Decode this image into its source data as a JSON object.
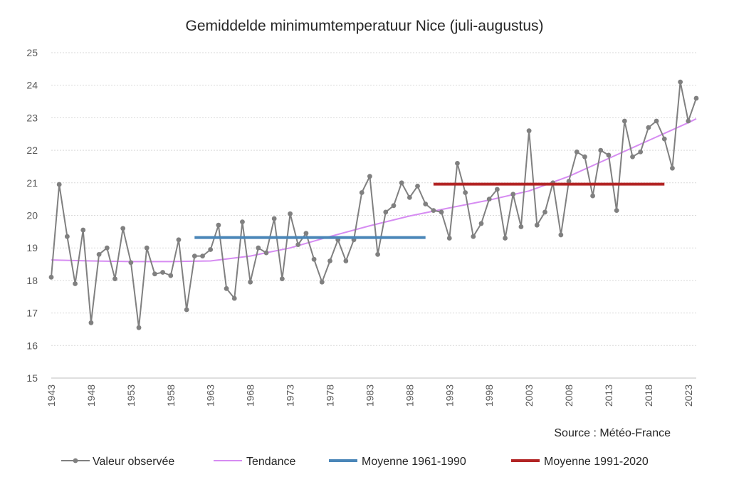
{
  "chart_data": {
    "type": "line",
    "title": "Gemiddelde minimumtemperatuur Nice (juli-augustus)",
    "source": "Source : Météo-France",
    "ylim": [
      15,
      25
    ],
    "yticks": [
      15,
      16,
      17,
      18,
      19,
      20,
      21,
      22,
      23,
      24,
      25
    ],
    "xlim": [
      1943,
      2024
    ],
    "xticks": [
      1943,
      1948,
      1953,
      1958,
      1963,
      1968,
      1973,
      1978,
      1983,
      1988,
      1993,
      1998,
      2003,
      2008,
      2013,
      2018,
      2023
    ],
    "grid": true,
    "legend_position": "bottom",
    "colors": {
      "observed": "#808080",
      "trend": "#d68cf2",
      "mean_1961_1990": "#4a86b8",
      "mean_1991_2020": "#b22424",
      "grid": "#d9d9d9",
      "axis": "#bfbfbf"
    },
    "series": [
      {
        "name": "Valeur observée",
        "x": [
          1943,
          1944,
          1945,
          1946,
          1947,
          1948,
          1949,
          1950,
          1951,
          1952,
          1953,
          1954,
          1955,
          1956,
          1957,
          1958,
          1959,
          1960,
          1961,
          1962,
          1963,
          1964,
          1965,
          1966,
          1967,
          1968,
          1969,
          1970,
          1971,
          1972,
          1973,
          1974,
          1975,
          1976,
          1977,
          1978,
          1979,
          1980,
          1981,
          1982,
          1983,
          1984,
          1985,
          1986,
          1987,
          1988,
          1989,
          1990,
          1991,
          1992,
          1993,
          1994,
          1995,
          1996,
          1997,
          1998,
          1999,
          2000,
          2001,
          2002,
          2003,
          2004,
          2005,
          2006,
          2007,
          2008,
          2009,
          2010,
          2011,
          2012,
          2013,
          2014,
          2015,
          2016,
          2017,
          2018,
          2019,
          2020,
          2021,
          2022,
          2023,
          2024
        ],
        "y": [
          18.1,
          20.95,
          19.35,
          17.9,
          19.55,
          16.7,
          18.8,
          19.0,
          18.05,
          19.6,
          18.55,
          16.55,
          19.0,
          18.2,
          18.25,
          18.15,
          19.25,
          17.1,
          18.75,
          18.75,
          18.95,
          19.7,
          17.75,
          17.45,
          19.8,
          17.95,
          19.0,
          18.85,
          19.9,
          18.05,
          20.05,
          19.1,
          19.45,
          18.65,
          17.95,
          18.6,
          19.25,
          18.6,
          19.25,
          20.7,
          21.2,
          18.8,
          20.1,
          20.3,
          21.0,
          20.55,
          20.9,
          20.35,
          20.15,
          20.1,
          19.3,
          21.6,
          20.7,
          19.35,
          19.75,
          20.5,
          20.8,
          19.3,
          20.65,
          19.65,
          22.6,
          19.7,
          20.1,
          21.0,
          19.4,
          21.05,
          21.95,
          21.8,
          20.6,
          22.0,
          21.85,
          20.15,
          22.9,
          21.8,
          21.95,
          22.7,
          22.9,
          22.35,
          21.45,
          24.1,
          22.9,
          23.6
        ]
      },
      {
        "name": "Tendance",
        "x": [
          1943,
          1948,
          1953,
          1958,
          1963,
          1968,
          1973,
          1978,
          1983,
          1988,
          1993,
          1998,
          2003,
          2008,
          2013,
          2018,
          2023,
          2024
        ],
        "y": [
          18.63,
          18.6,
          18.58,
          18.58,
          18.6,
          18.75,
          19.0,
          19.35,
          19.68,
          19.98,
          20.23,
          20.47,
          20.75,
          21.2,
          21.75,
          22.3,
          22.85,
          22.97
        ]
      },
      {
        "name": "Moyenne 1961-1990",
        "x": [
          1961,
          1990
        ],
        "y": [
          19.32,
          19.32
        ]
      },
      {
        "name": "Moyenne 1991-2020",
        "x": [
          1991,
          2020
        ],
        "y": [
          20.96,
          20.96
        ]
      }
    ]
  }
}
